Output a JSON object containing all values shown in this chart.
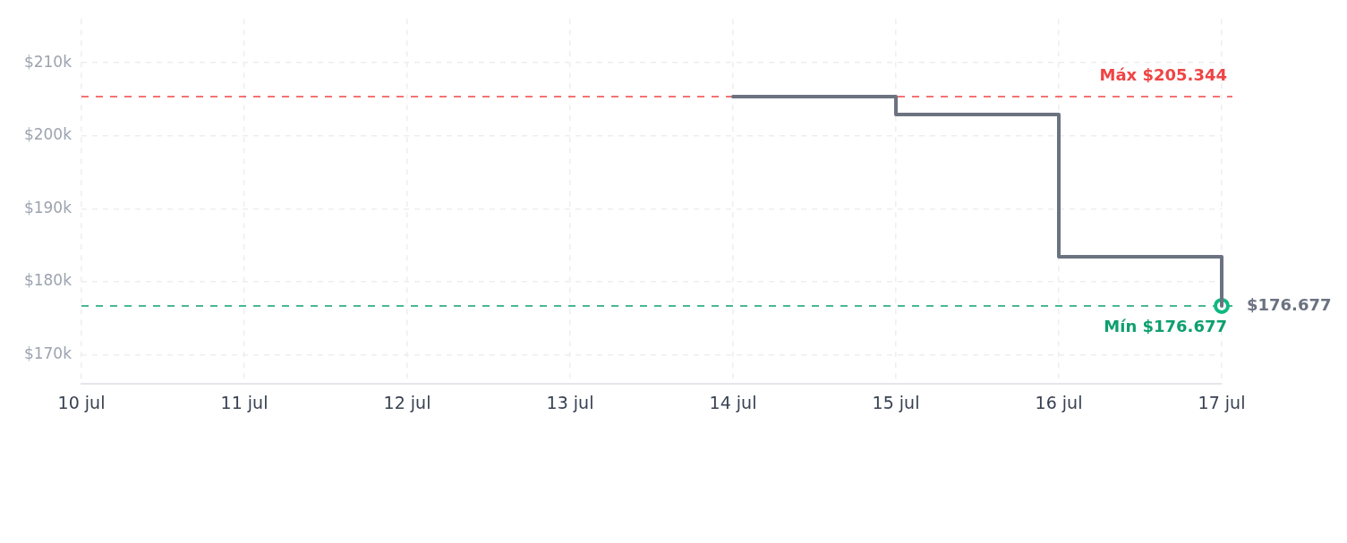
{
  "chart_data": {
    "type": "step",
    "categories": [
      "10 jul",
      "11 jul",
      "12 jul",
      "13 jul",
      "14 jul",
      "15 jul",
      "16 jul",
      "17 jul"
    ],
    "series": [
      {
        "type": "step",
        "color": "#6b7280",
        "marker": "none",
        "values": [
          null,
          null,
          null,
          null,
          205344,
          202900,
          183400,
          176677
        ]
      },
      {
        "type": "scatter",
        "color": "#10b981",
        "marker": "circle",
        "x": [
          "17 jul"
        ],
        "values": [
          176677
        ]
      }
    ],
    "ylim": [
      166000,
      216000
    ],
    "yticks": [
      {
        "value": 170000,
        "label": "$170k"
      },
      {
        "value": 180000,
        "label": "$180k"
      },
      {
        "value": 190000,
        "label": "$190k"
      },
      {
        "value": 200000,
        "label": "$200k"
      },
      {
        "value": 210000,
        "label": "$210k"
      }
    ],
    "grid": true,
    "ref_lines": [
      {
        "axis": "y",
        "value": 205344,
        "label": "Máx $205.344",
        "color": "#ef4444",
        "line_style": "dashed"
      },
      {
        "axis": "y",
        "value": 176677,
        "label": "Mín $176.677",
        "color": "#0e9f6e",
        "line_style": "dashed"
      }
    ],
    "annotations": [
      {
        "text": "$176.677",
        "x": "17 jul",
        "y": 176677
      }
    ]
  }
}
